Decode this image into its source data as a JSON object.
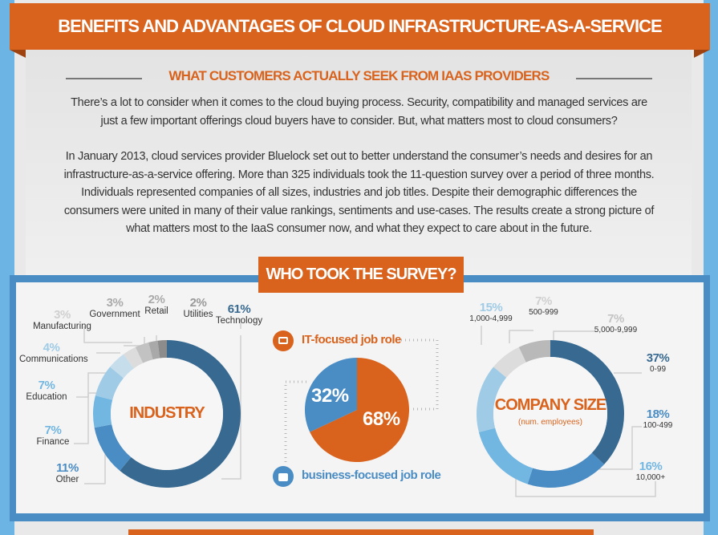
{
  "header": {
    "title": "BENEFITS AND ADVANTAGES OF CLOUD INFRASTRUCTURE-AS-A-SERVICE"
  },
  "intro": {
    "subtitle": "WHAT CUSTOMERS ACTUALLY SEEK FROM IAAS PROVIDERS",
    "paragraph1": "There’s a lot to consider when it comes to the cloud buying process. Security, compatibility and managed services are just a few important offerings cloud buyers have to consider. But, what matters most to cloud consumers?",
    "paragraph2": "In January 2013, cloud services provider Bluelock set out to better understand the consumer’s needs and desires for an infrastructure-as-a-service offering. More than 325 individuals took the 11-question survey over a period of three months. Individuals represented companies of all sizes, industries and job titles. Despite their demographic differences the consumers were united in many of their value rankings, sentiments and use-cases. The results create a strong picture of what matters most to the IaaS consumer now, and what they expect to care about in the future."
  },
  "survey": {
    "title": "WHO TOOK THE SURVEY?"
  },
  "colors": {
    "orange": "#d9621c",
    "blue_dark": "#386a91",
    "blue_mid": "#4a8cc4",
    "blue_light": "#72b6e2",
    "blue_pale": "#a0cbe6",
    "frame": "#4a8cc4",
    "background": "#6cb4e4"
  },
  "chart_data": [
    {
      "type": "pie",
      "variant": "donut",
      "title": "INDUSTRY",
      "categories": [
        "Technology",
        "Other",
        "Finance",
        "Education",
        "Communications",
        "Manufacturing",
        "Government",
        "Retail",
        "Utilities"
      ],
      "values": [
        61,
        11,
        7,
        7,
        4,
        3,
        3,
        2,
        2
      ],
      "labels": [
        "61%",
        "11%",
        "7%",
        "7%",
        "4%",
        "3%",
        "3%",
        "2%",
        "2%"
      ],
      "colors": [
        "#386a91",
        "#4a8cc4",
        "#72b6e2",
        "#a0cbe6",
        "#c6ddec",
        "#dcdcdc",
        "#c2c2c2",
        "#a9a9a9",
        "#8c8c8c"
      ]
    },
    {
      "type": "pie",
      "title": "",
      "categories": [
        "IT-focused job role",
        "business-focused job role"
      ],
      "values": [
        68,
        32
      ],
      "labels": [
        "68%",
        "32%"
      ],
      "colors": [
        "#d9621c",
        "#4a8cc4"
      ],
      "icons": [
        "monitor-icon",
        "briefcase-icon"
      ]
    },
    {
      "type": "pie",
      "variant": "donut",
      "title": "COMPANY SIZE",
      "subtitle": "(num. employees)",
      "categories": [
        "0-99",
        "100-499",
        "10,000+",
        "1,000-4,999",
        "500-999",
        "5,000-9,999"
      ],
      "values": [
        37,
        18,
        16,
        15,
        7,
        7
      ],
      "labels": [
        "37%",
        "18%",
        "16%",
        "15%",
        "7%",
        "7%"
      ],
      "colors": [
        "#386a91",
        "#4a8cc4",
        "#72b6e2",
        "#a0cbe6",
        "#dcdcdc",
        "#b9b9b9"
      ]
    }
  ]
}
